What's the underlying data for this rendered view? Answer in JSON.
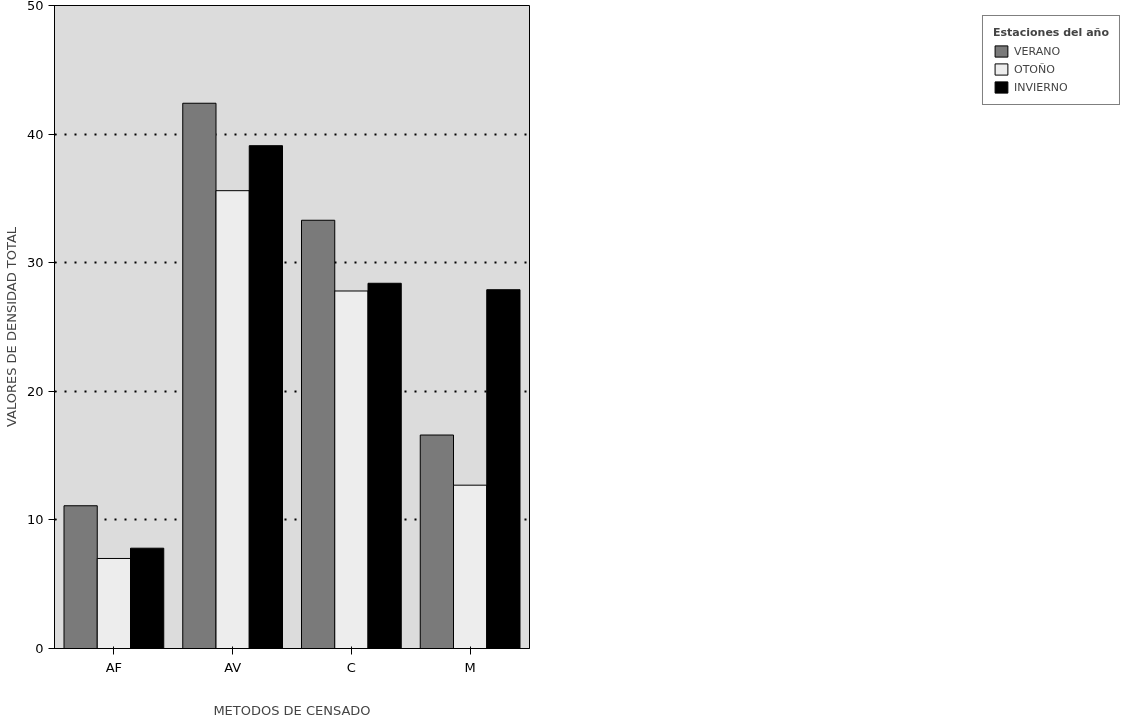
{
  "chart_data": {
    "type": "bar",
    "xlabel": "METODOS DE CENSADO",
    "ylabel": "VALORES DE DENSIDAD TOTAL",
    "legend_title": "Estaciones del año",
    "categories": [
      "AF",
      "AV",
      "C",
      "M"
    ],
    "series": [
      {
        "name": "VERANO",
        "color": "#7a7a7a",
        "values": [
          11.1,
          42.4,
          33.3,
          16.6
        ]
      },
      {
        "name": "OTOÑO",
        "color": "#ededed",
        "values": [
          7.0,
          35.6,
          27.8,
          12.7
        ]
      },
      {
        "name": "INVIERNO",
        "color": "#000000",
        "values": [
          7.8,
          39.1,
          28.4,
          27.9
        ]
      }
    ],
    "ylim": [
      0,
      50
    ],
    "yticks": [
      0,
      10,
      20,
      30,
      40,
      50
    ],
    "grid": "y",
    "line_style": "dotted",
    "legend": "right"
  }
}
